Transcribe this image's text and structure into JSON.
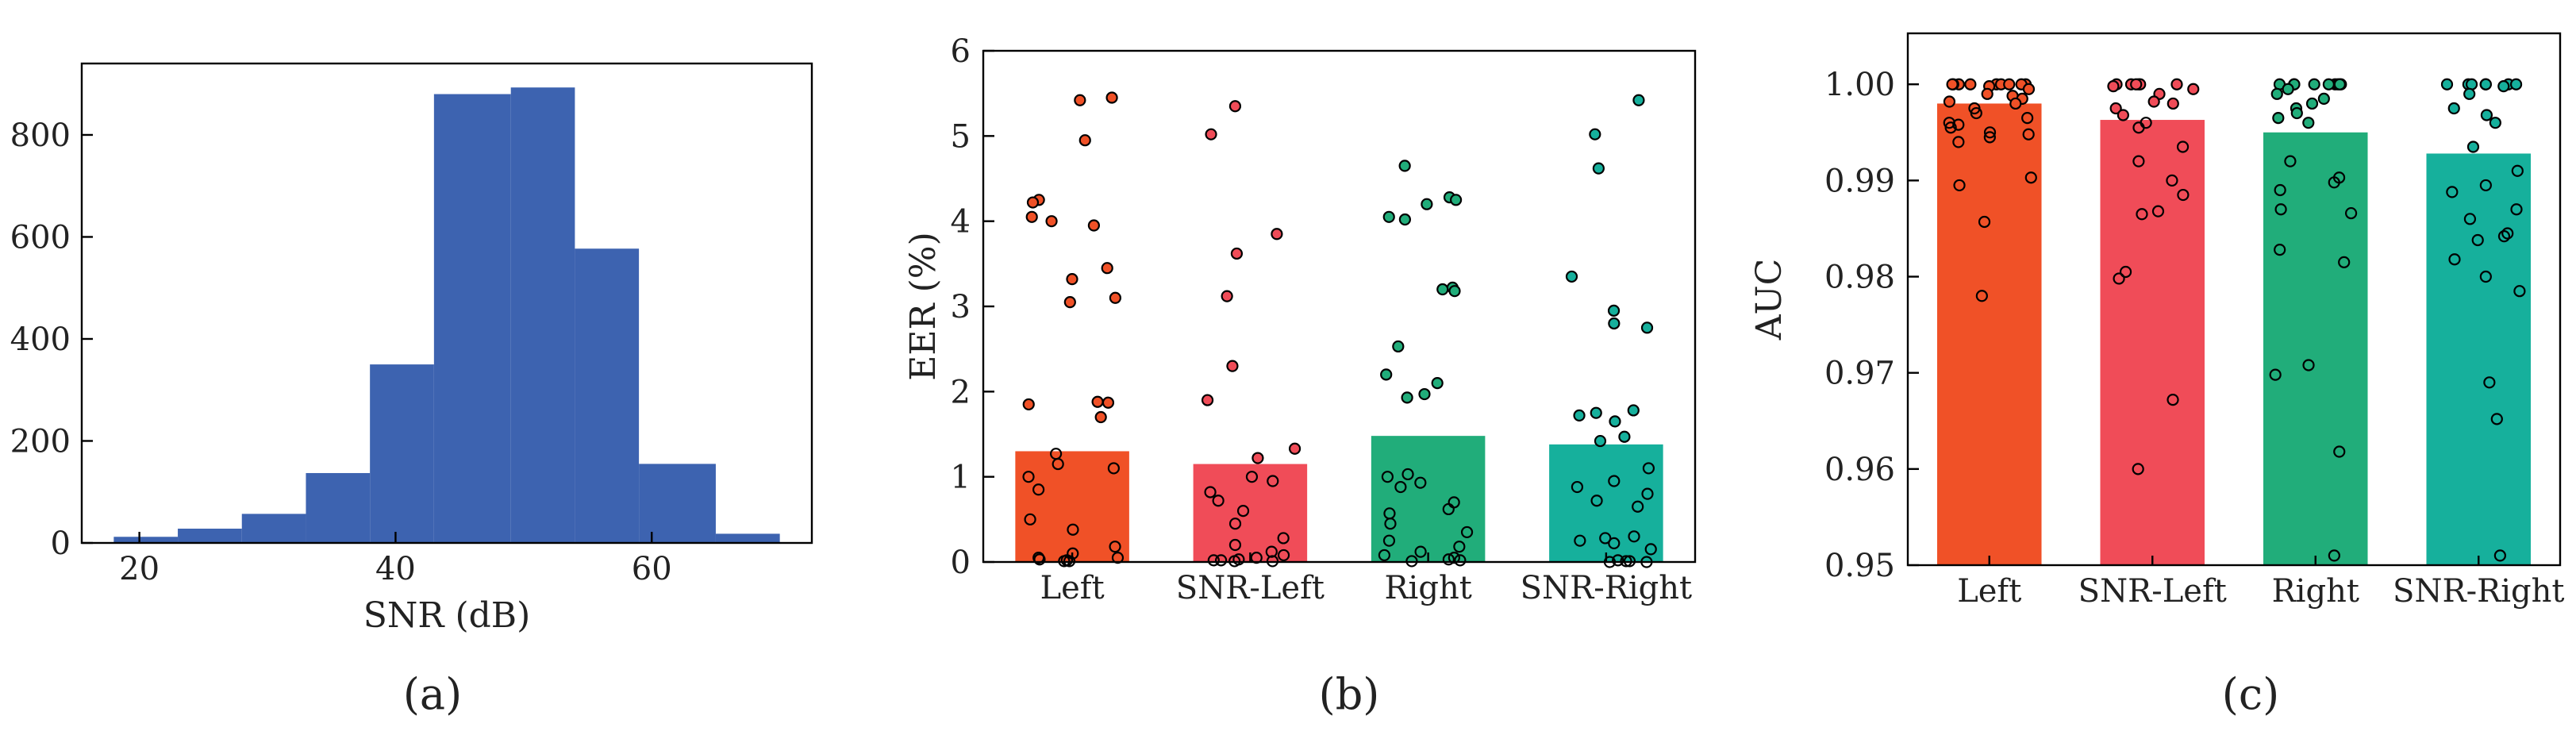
{
  "colors": {
    "histogram": "#3d63b0",
    "Left": "#f05127",
    "SNR-Left": "#f04c58",
    "Right": "#21ad7a",
    "SNR-Right": "#16b09c"
  },
  "panel_labels": [
    "(a)",
    "(b)",
    "(c)"
  ],
  "chart_data": [
    {
      "type": "bar",
      "title": "",
      "xlabel": "SNR (dB)",
      "ylabel": "",
      "xlim": [
        15.5,
        72.5
      ],
      "ylim": [
        0,
        940
      ],
      "xticks": [
        20,
        40,
        60
      ],
      "yticks": [
        0,
        200,
        400,
        600,
        800
      ],
      "bins": [
        {
          "x0": 18,
          "x1": 23,
          "count": 12
        },
        {
          "x0": 23,
          "x1": 28,
          "count": 28
        },
        {
          "x0": 28,
          "x1": 33,
          "count": 57
        },
        {
          "x0": 33,
          "x1": 38,
          "count": 137
        },
        {
          "x0": 38,
          "x1": 43,
          "count": 350
        },
        {
          "x0": 43,
          "x1": 49,
          "count": 880
        },
        {
          "x0": 49,
          "x1": 54,
          "count": 893
        },
        {
          "x0": 54,
          "x1": 59,
          "count": 577
        },
        {
          "x0": 59,
          "x1": 65,
          "count": 155
        },
        {
          "x0": 65,
          "x1": 70,
          "count": 18
        }
      ]
    },
    {
      "type": "bar",
      "title": "",
      "xlabel": "",
      "ylabel": "EER (%)",
      "ylim": [
        0,
        6
      ],
      "yticks": [
        0,
        1,
        2,
        3,
        4,
        5,
        6
      ],
      "categories": [
        "Left",
        "SNR-Left",
        "Right",
        "SNR-Right"
      ],
      "values": [
        1.3,
        1.15,
        1.48,
        1.38
      ],
      "points": {
        "Left": [
          5.45,
          5.42,
          4.95,
          4.25,
          4.22,
          4.05,
          4.0,
          3.95,
          3.45,
          3.32,
          3.1,
          3.05,
          1.88,
          1.87,
          1.85,
          1.7,
          1.27,
          1.15,
          1.1,
          1.0,
          0.85,
          0.5,
          0.38,
          0.18,
          0.1,
          0.05,
          0.05,
          0.03,
          0.02,
          0.01,
          0.01
        ],
        "SNR-Left": [
          5.35,
          5.02,
          3.85,
          3.62,
          3.12,
          2.3,
          1.9,
          1.33,
          1.22,
          1.0,
          0.95,
          0.82,
          0.72,
          0.6,
          0.45,
          0.28,
          0.2,
          0.12,
          0.08,
          0.05,
          0.03,
          0.02,
          0.02,
          0.01,
          0.01
        ],
        "Right": [
          4.65,
          4.28,
          4.25,
          4.2,
          4.05,
          4.02,
          3.22,
          3.2,
          3.18,
          2.53,
          2.2,
          2.1,
          1.97,
          1.93,
          1.03,
          1.0,
          0.93,
          0.88,
          0.7,
          0.62,
          0.57,
          0.45,
          0.35,
          0.25,
          0.18,
          0.12,
          0.08,
          0.05,
          0.03,
          0.02,
          0.01
        ],
        "SNR-Right": [
          5.42,
          5.02,
          4.62,
          3.35,
          2.95,
          2.8,
          2.75,
          1.78,
          1.75,
          1.72,
          1.65,
          1.47,
          1.42,
          1.1,
          0.95,
          0.88,
          0.8,
          0.72,
          0.65,
          0.3,
          0.28,
          0.25,
          0.22,
          0.15,
          0.02,
          0.01,
          0.01,
          0.0,
          0.0
        ]
      }
    },
    {
      "type": "bar",
      "title": "",
      "xlabel": "",
      "ylabel": "AUC",
      "ylim": [
        0.95,
        1.0053
      ],
      "yticks": [
        "0.95",
        "0.96",
        "0.97",
        "0.98",
        "0.99",
        "1.00"
      ],
      "categories": [
        "Left",
        "SNR-Left",
        "Right",
        "SNR-Right"
      ],
      "values": [
        0.998,
        0.9963,
        0.995,
        0.9928
      ],
      "points": {
        "Left": [
          1.0,
          1.0,
          1.0,
          1.0,
          1.0,
          1.0,
          1.0,
          1.0,
          1.0,
          0.9998,
          0.9995,
          0.999,
          0.9988,
          0.9985,
          0.9982,
          0.998,
          0.9975,
          0.997,
          0.9965,
          0.996,
          0.9958,
          0.9955,
          0.995,
          0.9948,
          0.9945,
          0.994,
          0.9903,
          0.9895,
          0.9857,
          0.978
        ],
        "SNR-Left": [
          1.0,
          1.0,
          1.0,
          1.0,
          1.0,
          1.0,
          0.9998,
          0.9995,
          0.999,
          0.9982,
          0.998,
          0.9975,
          0.9968,
          0.996,
          0.9955,
          0.9935,
          0.992,
          0.99,
          0.9885,
          0.9868,
          0.9865,
          0.9805,
          0.9798,
          0.9672,
          0.96
        ],
        "Right": [
          1.0,
          1.0,
          1.0,
          1.0,
          1.0,
          1.0,
          1.0,
          1.0,
          1.0,
          0.9995,
          0.999,
          0.9985,
          0.998,
          0.9975,
          0.997,
          0.9965,
          0.996,
          0.992,
          0.9903,
          0.9898,
          0.989,
          0.987,
          0.9866,
          0.9828,
          0.9815,
          0.9708,
          0.9698,
          0.9618,
          0.951
        ],
        "SNR-Right": [
          1.0,
          1.0,
          1.0,
          1.0,
          1.0,
          1.0,
          1.0,
          0.9998,
          0.999,
          0.9975,
          0.9968,
          0.996,
          0.9935,
          0.991,
          0.9895,
          0.9888,
          0.987,
          0.986,
          0.9845,
          0.9842,
          0.9838,
          0.9818,
          0.98,
          0.9785,
          0.969,
          0.9652,
          0.951
        ]
      }
    }
  ]
}
